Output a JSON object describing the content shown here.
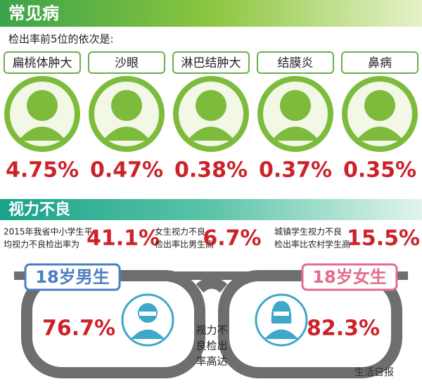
{
  "header": {
    "title": "常见病",
    "subtitle": "检出率前5位的依次是:"
  },
  "diseases": [
    {
      "name": "扁桃体肿大",
      "rate": "4.75%"
    },
    {
      "name": "沙眼",
      "rate": "0.47%"
    },
    {
      "name": "淋巴结肿大",
      "rate": "0.38%"
    },
    {
      "name": "结膜炎",
      "rate": "0.37%"
    },
    {
      "name": "鼻病",
      "rate": "0.35%"
    }
  ],
  "vision": {
    "title": "视力不良",
    "stats": [
      {
        "text": [
          "2015年我省中小学生平",
          "均视力不良检出率为"
        ],
        "value": "41.1%"
      },
      {
        "text": [
          "女生视力不良",
          "检出率比男生高"
        ],
        "value": "6.7%"
      },
      {
        "text": [
          "城镇学生视力不良",
          "检出率比农村学生高"
        ],
        "value": "15.5%"
      }
    ],
    "male": {
      "label": "18岁男生",
      "value": "76.7%"
    },
    "female": {
      "label": "18岁女生",
      "value": "82.3%"
    },
    "note": [
      "视力不",
      "良检出",
      "率高达"
    ]
  },
  "watermark": "生活日报"
}
